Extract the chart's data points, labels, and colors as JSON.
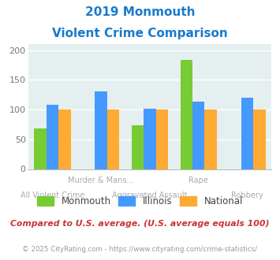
{
  "title_line1": "2019 Monmouth",
  "title_line2": "Violent Crime Comparison",
  "monmouth": [
    68,
    0,
    73,
    183,
    0
  ],
  "illinois": [
    108,
    130,
    102,
    113,
    120
  ],
  "national": [
    100,
    100,
    100,
    100,
    100
  ],
  "color_monmouth": "#77cc33",
  "color_illinois": "#4499ff",
  "color_national": "#ffaa33",
  "ylim": [
    0,
    210
  ],
  "yticks": [
    0,
    50,
    100,
    150,
    200
  ],
  "group_labels_top": [
    "",
    "Murder & Mans...",
    "",
    "Rape",
    ""
  ],
  "group_labels_bot": [
    "All Violent Crime",
    "",
    "Aggravated Assault",
    "",
    "Robbery"
  ],
  "note": "Compared to U.S. average. (U.S. average equals 100)",
  "copyright": "© 2025 CityRating.com - https://www.cityrating.com/crime-statistics/",
  "bg_color": "#e6eff0",
  "title_color": "#1a7acc",
  "note_color": "#cc3333",
  "copyright_color": "#999999",
  "label_color": "#aaaaaa"
}
